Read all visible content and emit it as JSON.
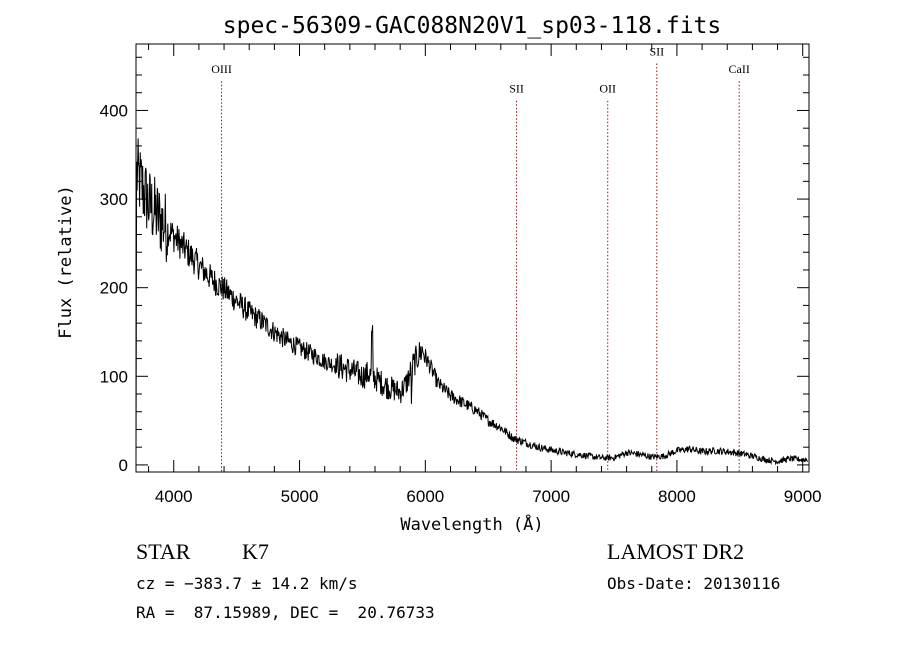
{
  "chart_data": {
    "type": "line",
    "title": "spec-56309-GAC088N20V1_sp03-118.fits",
    "xlabel": "Wavelength (Å)",
    "ylabel": "Flux (relative)",
    "xlim": [
      3700,
      9050
    ],
    "ylim": [
      -8,
      475
    ],
    "xticks": [
      4000,
      5000,
      6000,
      7000,
      8000,
      9000
    ],
    "yticks": [
      0,
      100,
      200,
      300,
      400
    ],
    "grid": false,
    "series": [
      {
        "color": "#000000",
        "anchors": [
          [
            3700,
            330
          ],
          [
            3730,
            320
          ],
          [
            3800,
            295
          ],
          [
            3900,
            275
          ],
          [
            4000,
            258
          ],
          [
            4100,
            242
          ],
          [
            4200,
            225
          ],
          [
            4300,
            210
          ],
          [
            4400,
            198
          ],
          [
            4500,
            185
          ],
          [
            4600,
            172
          ],
          [
            4700,
            162
          ],
          [
            4800,
            150
          ],
          [
            4900,
            140
          ],
          [
            5000,
            132
          ],
          [
            5100,
            125
          ],
          [
            5200,
            117
          ],
          [
            5300,
            112
          ],
          [
            5400,
            107
          ],
          [
            5500,
            100
          ],
          [
            5550,
            103
          ],
          [
            5600,
            98
          ],
          [
            5700,
            88
          ],
          [
            5800,
            82
          ],
          [
            5850,
            92
          ],
          [
            5900,
            112
          ],
          [
            5950,
            125
          ],
          [
            5980,
            130
          ],
          [
            6000,
            122
          ],
          [
            6050,
            108
          ],
          [
            6100,
            92
          ],
          [
            6200,
            78
          ],
          [
            6300,
            70
          ],
          [
            6400,
            62
          ],
          [
            6500,
            50
          ],
          [
            6600,
            42
          ],
          [
            6700,
            30
          ],
          [
            6800,
            25
          ],
          [
            6900,
            20
          ],
          [
            7000,
            17
          ],
          [
            7100,
            14
          ],
          [
            7200,
            12
          ],
          [
            7300,
            10
          ],
          [
            7400,
            8
          ],
          [
            7500,
            8
          ],
          [
            7600,
            14
          ],
          [
            7700,
            12
          ],
          [
            7800,
            9
          ],
          [
            7900,
            10
          ],
          [
            8000,
            16
          ],
          [
            8100,
            18
          ],
          [
            8200,
            15
          ],
          [
            8300,
            16
          ],
          [
            8400,
            15
          ],
          [
            8500,
            13
          ],
          [
            8600,
            10
          ],
          [
            8700,
            6
          ],
          [
            8800,
            4
          ],
          [
            8900,
            7
          ],
          [
            9000,
            6
          ]
        ]
      }
    ],
    "lines": [
      {
        "label": "OIII",
        "x": 4380,
        "label_y": 442
      },
      {
        "label": "SII",
        "x": 6725,
        "label_y": 420
      },
      {
        "label": "OII",
        "x": 7450,
        "label_y": 420
      },
      {
        "label": "SII",
        "x": 7840,
        "label_y": 462
      },
      {
        "label": "CaII",
        "x": 8495,
        "label_y": 442
      }
    ],
    "line_color": "#8b1a1a"
  },
  "info": {
    "class": "STAR",
    "subclass": "K7",
    "survey": "LAMOST DR2",
    "cz": "cz = −383.7 ± 14.2 km/s",
    "obs_date": "Obs-Date: 20130116",
    "radec": "RA =  87.15989, DEC =  20.76733"
  }
}
